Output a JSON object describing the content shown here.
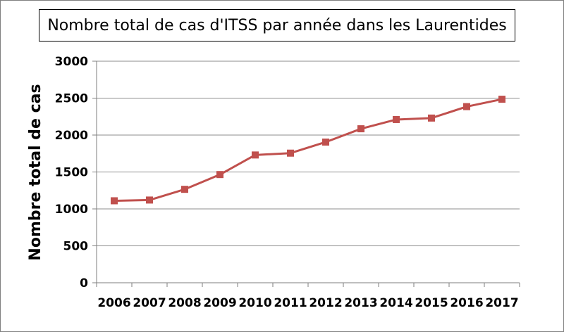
{
  "chart_data": {
    "type": "line",
    "title": "Nombre total de cas d'ITSS par année dans les Laurentides",
    "xlabel": "",
    "ylabel": "Nombre total de cas",
    "categories": [
      "2006",
      "2007",
      "2008",
      "2009",
      "2010",
      "2011",
      "2012",
      "2013",
      "2014",
      "2015",
      "2016",
      "2017"
    ],
    "series": [
      {
        "values": [
          1110,
          1120,
          1265,
          1465,
          1730,
          1755,
          1905,
          2085,
          2210,
          2230,
          2385,
          2485
        ]
      }
    ],
    "ylim": [
      0,
      3000
    ],
    "yticks": [
      0,
      500,
      1000,
      1500,
      2000,
      2500,
      3000
    ],
    "grid": true,
    "legend": "none",
    "colors": {
      "series": "#c0504d",
      "grid": "#8c8c8c",
      "axis": "#7f7f7f"
    }
  }
}
